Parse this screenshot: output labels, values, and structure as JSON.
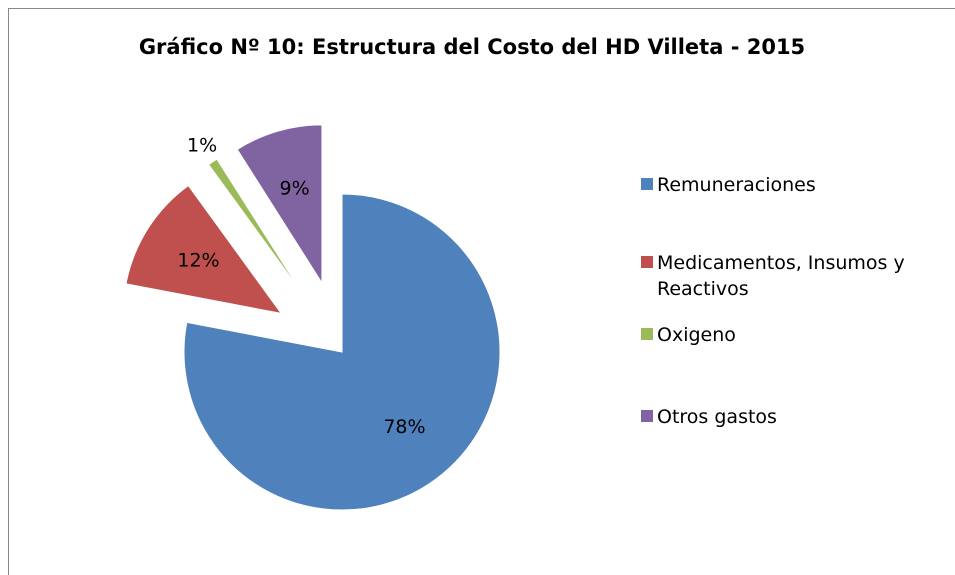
{
  "chart_data": {
    "type": "pie",
    "title": "Gráfico Nº 10: Estructura del Costo del HD Villeta - 2015",
    "categories": [
      "Remuneraciones",
      "Medicamentos, Insumos y Reactivos",
      "Oxigeno",
      "Otros gastos"
    ],
    "values": [
      78,
      12,
      1,
      9
    ],
    "value_labels": [
      "78%",
      "12%",
      "1%",
      "9%"
    ],
    "colors": [
      "#4f81bd",
      "#c0504d",
      "#9bbb59",
      "#8064a2"
    ],
    "exploded": [
      false,
      true,
      true,
      true
    ],
    "legend": "right"
  }
}
